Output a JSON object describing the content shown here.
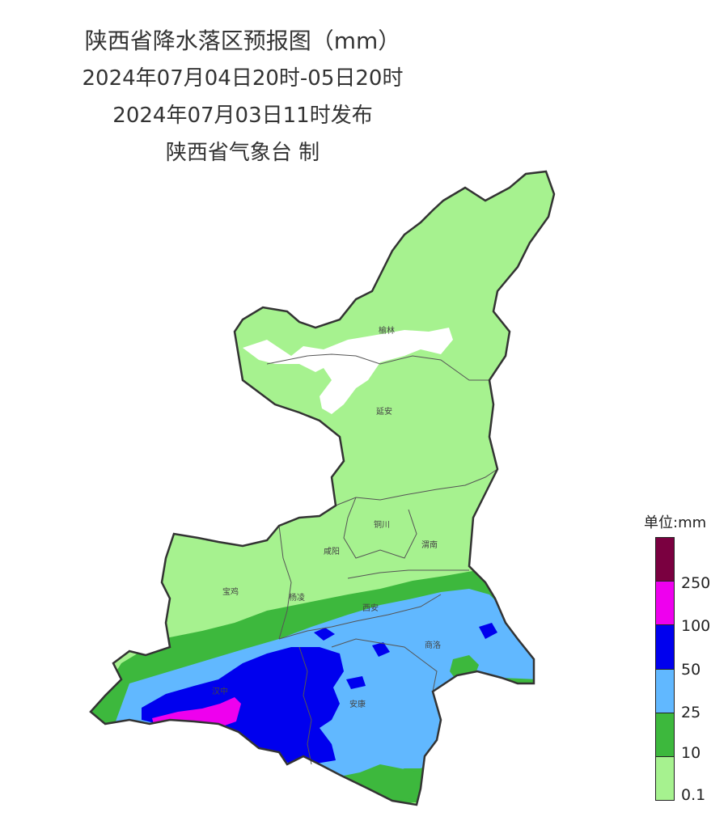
{
  "header": {
    "title": "陕西省降水落区预报图（mm）",
    "period": "2024年07月04日20时-05日20时",
    "issued": "2024年07月03日11时发布",
    "agency": "陕西省气象台 制"
  },
  "map": {
    "cities": [
      "榆林",
      "延安",
      "铜川",
      "咸阳",
      "渭南",
      "宝鸡",
      "杨凌",
      "西安",
      "商洛",
      "汉中",
      "安康"
    ]
  },
  "legend": {
    "title": "单位:mm",
    "levels": [
      {
        "label": "",
        "color": "#7a0040"
      },
      {
        "label": "250",
        "color": "#ee00ee"
      },
      {
        "label": "100",
        "color": "#0000ee"
      },
      {
        "label": "50",
        "color": "#61b8ff"
      },
      {
        "label": "25",
        "color": "#3db83d"
      },
      {
        "label": "10",
        "color": "#a6f28f"
      },
      {
        "label": "0.1",
        "color": ""
      }
    ]
  }
}
